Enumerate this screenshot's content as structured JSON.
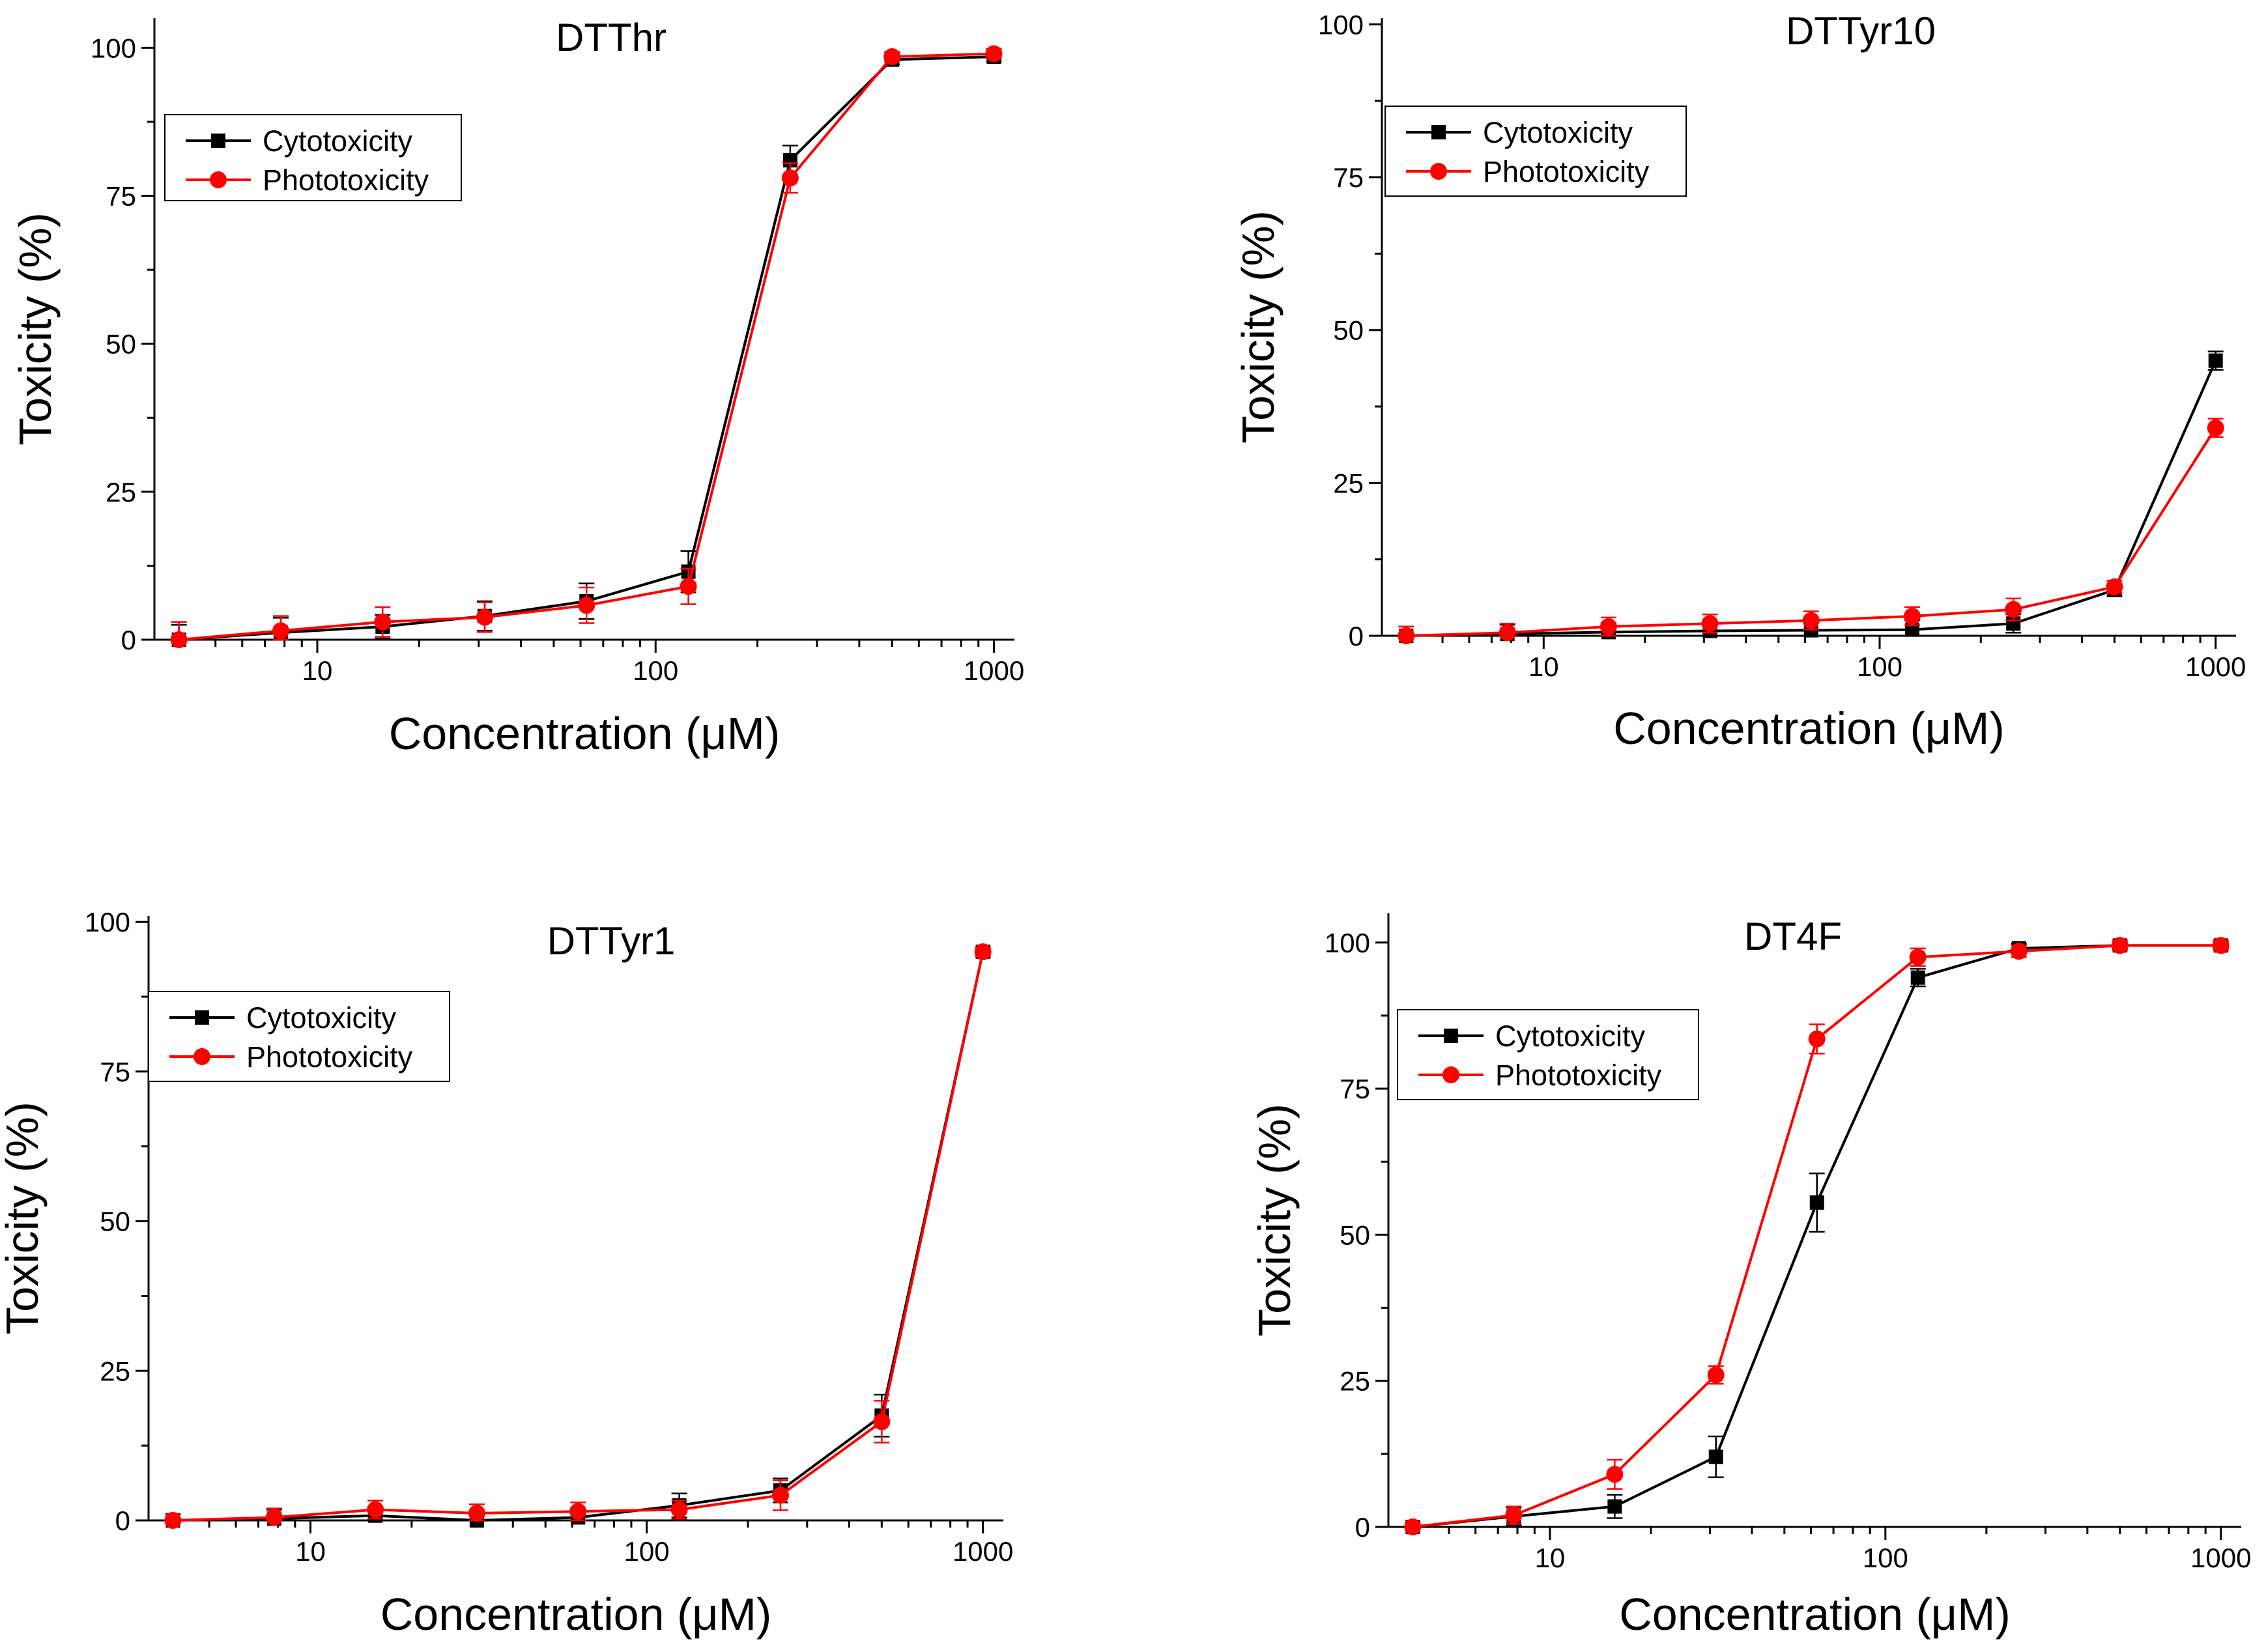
{
  "chart_data": [
    {
      "type": "line",
      "title": "DTThr",
      "xlabel": "Concentration (μM)",
      "ylabel": "Toxicity (%)",
      "xscale": "log",
      "xlim": [
        3.3,
        1150
      ],
      "ylim": [
        0,
        105
      ],
      "xticks": [
        10,
        100,
        1000
      ],
      "xtick_labels": [
        "10",
        "100",
        "1000"
      ],
      "yticks": [
        0,
        25,
        50,
        75,
        100
      ],
      "ytick_labels": [
        "0",
        "25",
        "50",
        "75",
        "100"
      ],
      "legend": "top-left",
      "x": [
        3.9,
        7.8,
        15.6,
        31.25,
        62.5,
        125,
        250,
        500,
        1000
      ],
      "series": [
        {
          "name": "Cytotoxicity",
          "color": "#000000",
          "marker": "square",
          "values": [
            0,
            1.2,
            2.2,
            4.0,
            6.5,
            11.5,
            81.0,
            98.0,
            98.5
          ],
          "errors": [
            2.5,
            2.5,
            2.0,
            2.5,
            3.0,
            3.5,
            2.5,
            0.8,
            0.8
          ]
        },
        {
          "name": "Phototoxicity",
          "color": "#ff0000",
          "marker": "circle",
          "values": [
            0,
            1.5,
            3.0,
            3.8,
            5.8,
            9.0,
            78.0,
            98.5,
            99.0
          ],
          "errors": [
            3.0,
            2.5,
            2.5,
            2.5,
            3.0,
            3.0,
            2.5,
            0.8,
            0.8
          ]
        }
      ]
    },
    {
      "type": "line",
      "title": "DTTyr10",
      "xlabel": "Concentration (μM)",
      "ylabel": "Toxicity (%)",
      "xscale": "log",
      "xlim": [
        3.3,
        1150
      ],
      "ylim": [
        0,
        101
      ],
      "xticks": [
        10,
        100,
        1000
      ],
      "xtick_labels": [
        "10",
        "100",
        "1000"
      ],
      "yticks": [
        0,
        25,
        50,
        75,
        100
      ],
      "ytick_labels": [
        "0",
        "25",
        "50",
        "75",
        "100"
      ],
      "legend": "top-left",
      "x": [
        3.9,
        7.8,
        15.6,
        31.25,
        62.5,
        125,
        250,
        500,
        1000
      ],
      "series": [
        {
          "name": "Cytotoxicity",
          "color": "#000000",
          "marker": "square",
          "values": [
            0,
            0.3,
            0.6,
            0.8,
            0.9,
            1.0,
            2.0,
            7.5,
            45.0
          ],
          "errors": [
            1.5,
            1.5,
            1.5,
            1.5,
            1.5,
            1.5,
            1.5,
            1.0,
            1.5
          ]
        },
        {
          "name": "Phototoxicity",
          "color": "#ff0000",
          "marker": "circle",
          "values": [
            0,
            0.5,
            1.5,
            2.0,
            2.5,
            3.2,
            4.3,
            8.0,
            34.0
          ],
          "errors": [
            1.5,
            1.5,
            1.5,
            1.5,
            1.5,
            1.5,
            1.8,
            1.0,
            1.5
          ]
        }
      ]
    },
    {
      "type": "line",
      "title": "DTTyr1",
      "xlabel": "Concentration (μM)",
      "ylabel": "Toxicity (%)",
      "xscale": "log",
      "xlim": [
        3.3,
        1150
      ],
      "ylim": [
        0,
        101
      ],
      "xticks": [
        10,
        100,
        1000
      ],
      "xtick_labels": [
        "10",
        "100",
        "1000"
      ],
      "yticks": [
        0,
        25,
        50,
        75,
        100
      ],
      "ytick_labels": [
        "0",
        "25",
        "50",
        "75",
        "100"
      ],
      "legend": "top-left",
      "x": [
        3.9,
        7.8,
        15.6,
        31.25,
        62.5,
        125,
        250,
        500,
        1000
      ],
      "series": [
        {
          "name": "Cytotoxicity",
          "color": "#000000",
          "marker": "square",
          "values": [
            0,
            0.3,
            0.8,
            0,
            0.5,
            2.5,
            5.0,
            17.5,
            95.0
          ],
          "errors": [
            1.0,
            1.5,
            1.5,
            1.5,
            1.5,
            2.0,
            2.0,
            3.5,
            0.8
          ]
        },
        {
          "name": "Phototoxicity",
          "color": "#ff0000",
          "marker": "circle",
          "values": [
            0,
            0.5,
            1.8,
            1.2,
            1.5,
            1.8,
            4.2,
            16.5,
            95.0
          ],
          "errors": [
            1.0,
            1.5,
            1.5,
            1.5,
            1.5,
            1.5,
            2.5,
            3.5,
            0.8
          ]
        }
      ]
    },
    {
      "type": "line",
      "title": "DT4F",
      "xlabel": "Concentration (μM)",
      "ylabel": "Toxicity (%)",
      "xscale": "log",
      "xlim": [
        3.3,
        1150
      ],
      "ylim": [
        0,
        105
      ],
      "xticks": [
        10,
        100,
        1000
      ],
      "xtick_labels": [
        "10",
        "100",
        "1000"
      ],
      "yticks": [
        0,
        25,
        50,
        75,
        100
      ],
      "ytick_labels": [
        "0",
        "25",
        "50",
        "75",
        "100"
      ],
      "legend": "top-left",
      "x": [
        3.9,
        7.8,
        15.6,
        31.25,
        62.5,
        125,
        250,
        500,
        1000
      ],
      "series": [
        {
          "name": "Cytotoxicity",
          "color": "#000000",
          "marker": "square",
          "values": [
            0,
            1.8,
            3.5,
            12.0,
            55.5,
            94.0,
            99.0,
            99.5,
            99.5
          ],
          "errors": [
            0.8,
            1.5,
            2.0,
            3.5,
            5.0,
            1.5,
            0.8,
            0.8,
            0.8
          ]
        },
        {
          "name": "Phototoxicity",
          "color": "#ff0000",
          "marker": "circle",
          "values": [
            0,
            2.0,
            9.0,
            26.0,
            83.5,
            97.5,
            98.5,
            99.5,
            99.5
          ],
          "errors": [
            0.8,
            1.5,
            2.5,
            1.5,
            2.5,
            1.5,
            1.0,
            0.8,
            0.8
          ]
        }
      ]
    }
  ]
}
